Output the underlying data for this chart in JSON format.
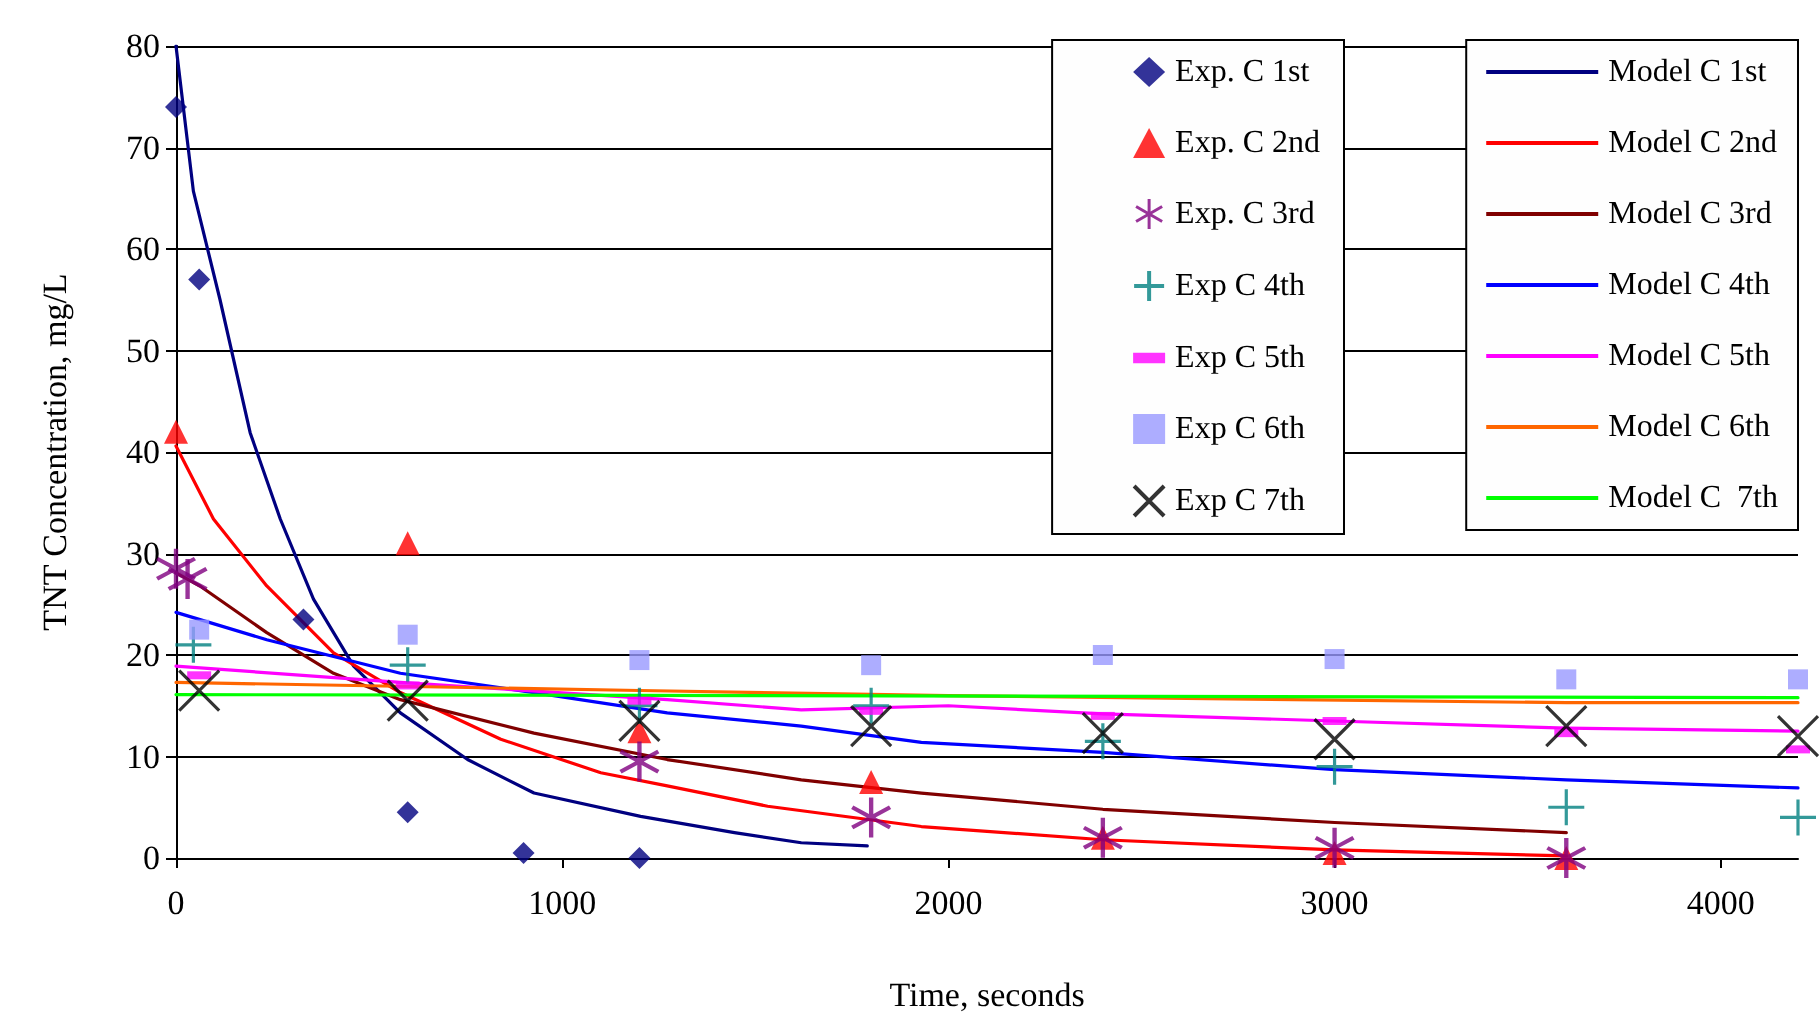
{
  "chart_data": {
    "type": "scatter",
    "xlabel": "Time, seconds",
    "ylabel": "TNT Concentration, mg/L",
    "xlim": [
      0,
      4200
    ],
    "xticks": [
      0,
      1000,
      2000,
      3000,
      4000
    ],
    "ylim": [
      0,
      80
    ],
    "yticks": [
      0,
      10,
      20,
      30,
      40,
      50,
      60,
      70,
      80
    ],
    "grid": "y",
    "legend": "top right",
    "series": [
      {
        "name": "Exp. C 1st",
        "marker": "diamond",
        "color": "#000080",
        "x": [
          0,
          60,
          330,
          600,
          900,
          1200
        ],
        "values": [
          74,
          57,
          23.5,
          4.5,
          0.5,
          0
        ]
      },
      {
        "name": "Exp. C 2nd",
        "marker": "triangle",
        "color": "#ff0000",
        "x": [
          0,
          600,
          1200,
          1800,
          2400,
          3000,
          3600
        ],
        "values": [
          42,
          31,
          12.5,
          7.5,
          2,
          0.5,
          0
        ]
      },
      {
        "name": "Exp. C 3rd",
        "marker": "star",
        "color": "#800080",
        "x": [
          0,
          30,
          1200,
          1800,
          2400,
          3000,
          3600
        ],
        "values": [
          28.5,
          27.5,
          9.5,
          4,
          2,
          1,
          0
        ]
      },
      {
        "name": "Exp C 4th",
        "marker": "cross",
        "color": "#008080",
        "x": [
          45,
          600,
          1200,
          1800,
          2400,
          3000,
          3600,
          4200
        ],
        "values": [
          21,
          19,
          15,
          15,
          11.5,
          9,
          5,
          4
        ]
      },
      {
        "name": "Exp C 5th",
        "color": "#ff00ff",
        "x": [
          60,
          600,
          1200,
          1800,
          2400,
          3000,
          3600,
          4200
        ],
        "values": [
          18,
          17,
          15.5,
          14.5,
          14,
          13.5,
          12.3,
          10.7
        ]
      },
      {
        "name": "Exp C 6th",
        "marker": "square",
        "color": "#9999ff",
        "x": [
          60,
          600,
          1200,
          1800,
          2400,
          3000,
          3600,
          4200
        ],
        "values": [
          22.5,
          22,
          19.5,
          19,
          20,
          19.6,
          17.6,
          17.6
        ]
      },
      {
        "name": "Exp C 7th",
        "marker": "cross",
        "color": "#000000",
        "x": [
          60,
          600,
          1200,
          1800,
          2400,
          3000,
          3600,
          4200
        ],
        "values": [
          16.5,
          15.5,
          13.5,
          13,
          12.3,
          11.7,
          13,
          12
        ]
      },
      {
        "name": "Model C 1st",
        "type": "line",
        "marker": "none",
        "color": "#000080",
        "x": [
          0,
          45,
          114,
          192,
          270,
          356,
          460,
          581,
          755,
          927,
          1203,
          1446,
          1619,
          1790
        ],
        "values": [
          80,
          65.7,
          55,
          41.9,
          33.4,
          25.5,
          18.9,
          14.3,
          9.7,
          6.4,
          4.1,
          2.5,
          1.5,
          1.2
        ]
      },
      {
        "name": "Model C 2nd",
        "type": "line",
        "marker": "none",
        "color": "#ff0000",
        "x": [
          0,
          97,
          235,
          408,
          581,
          841,
          1100,
          1272,
          1532,
          1930,
          2400,
          3000,
          3600
        ],
        "values": [
          40.6,
          33.4,
          26.8,
          20.2,
          16.3,
          11.7,
          8.4,
          7.1,
          5.1,
          3.1,
          1.8,
          0.8,
          0.2
        ]
      },
      {
        "name": "Model C 3rd",
        "type": "line",
        "marker": "none",
        "color": "#800000",
        "x": [
          0,
          62,
          235,
          408,
          581,
          927,
          1272,
          1619,
          1930,
          2400,
          3000,
          3600
        ],
        "values": [
          28.1,
          26.8,
          22.2,
          18.2,
          15.6,
          12.3,
          9.7,
          7.7,
          6.4,
          4.8,
          3.5,
          2.5
        ]
      },
      {
        "name": "Model C 4th",
        "type": "line",
        "marker": "none",
        "color": "#0000ff",
        "x": [
          0,
          235,
          581,
          927,
          1272,
          1619,
          1930,
          2400,
          3000,
          3600,
          4200
        ],
        "values": [
          24.2,
          21.5,
          18.2,
          16.3,
          14.3,
          13,
          11.4,
          10.4,
          8.7,
          7.7,
          6.9
        ]
      },
      {
        "name": "Model C 5th",
        "type": "line",
        "marker": "none",
        "color": "#ff00ff",
        "x": [
          0,
          581,
          1272,
          1619,
          2000,
          2400,
          3000,
          3600,
          4200
        ],
        "values": [
          18.9,
          17.3,
          15.6,
          14.6,
          15,
          14.2,
          13.5,
          12.8,
          12.5
        ]
      },
      {
        "name": "Model C 6th",
        "type": "line",
        "marker": "none",
        "color": "#ff6600",
        "x": [
          0,
          1200,
          2000,
          3600,
          4200
        ],
        "values": [
          17.3,
          16.5,
          16,
          15.3,
          15.3
        ]
      },
      {
        "name": "Model C  7th",
        "type": "line",
        "marker": "none",
        "color": "#00ff00",
        "x": [
          0,
          4200
        ],
        "values": [
          16.1,
          15.8
        ]
      }
    ]
  }
}
